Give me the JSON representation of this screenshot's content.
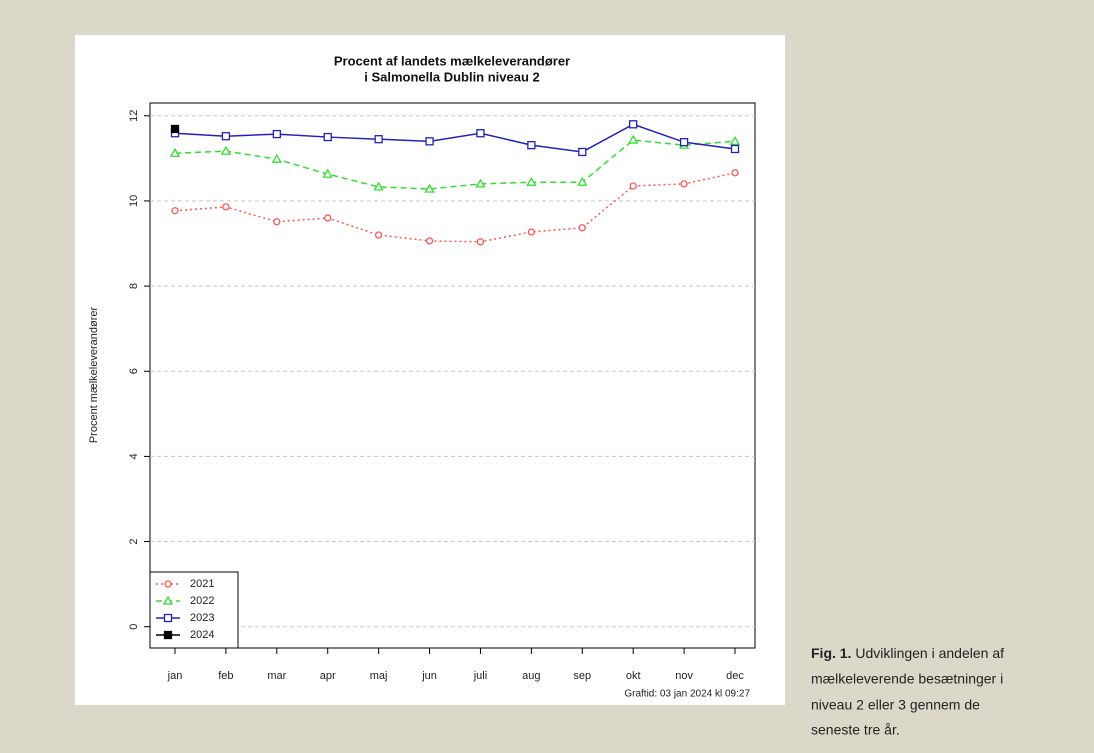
{
  "chart_data": {
    "type": "line",
    "title": [
      "Procent af landets mælkeleverandører",
      "i Salmonella Dublin niveau 2"
    ],
    "y_label": "Procent mælkeleverandører",
    "categories": [
      "jan",
      "feb",
      "mar",
      "apr",
      "maj",
      "jun",
      "juli",
      "aug",
      "sep",
      "okt",
      "nov",
      "dec"
    ],
    "series": [
      {
        "name": "2021",
        "color": "#ff5555",
        "marker": "circle",
        "dash": "dotted",
        "values": [
          9.77,
          9.86,
          9.51,
          9.6,
          9.2,
          9.06,
          9.04,
          9.27,
          9.37,
          10.35,
          10.4,
          10.66
        ]
      },
      {
        "name": "2022",
        "color": "#33dd33",
        "marker": "triangle",
        "dash": "dashed",
        "values": [
          11.12,
          11.17,
          10.98,
          10.63,
          10.33,
          10.28,
          10.4,
          10.44,
          10.44,
          11.43,
          11.31,
          11.4
        ]
      },
      {
        "name": "2023",
        "color": "#2222bb",
        "marker": "square",
        "dash": "solid",
        "values": [
          11.59,
          11.52,
          11.57,
          11.5,
          11.45,
          11.4,
          11.59,
          11.31,
          11.15,
          11.8,
          11.38,
          11.22
        ]
      },
      {
        "name": "2024",
        "color": "#000000",
        "marker": "filled-square",
        "dash": "solid",
        "values": [
          11.69,
          null,
          null,
          null,
          null,
          null,
          null,
          null,
          null,
          null,
          null,
          null
        ]
      }
    ],
    "ylim": [
      -0.5,
      12.3
    ],
    "yticks": [
      0,
      2,
      4,
      6,
      8,
      10,
      12
    ],
    "grid": true,
    "legend": "bottom-left",
    "footnote": "Graftid: 03 jan 2024 kl 09:27"
  },
  "caption": {
    "label": "Fig. 1.",
    "lines": [
      "Udviklingen i andelen af",
      "mælkeleverende besætninger i",
      "niveau 2 eller 3 gennem de",
      "seneste tre år."
    ]
  }
}
